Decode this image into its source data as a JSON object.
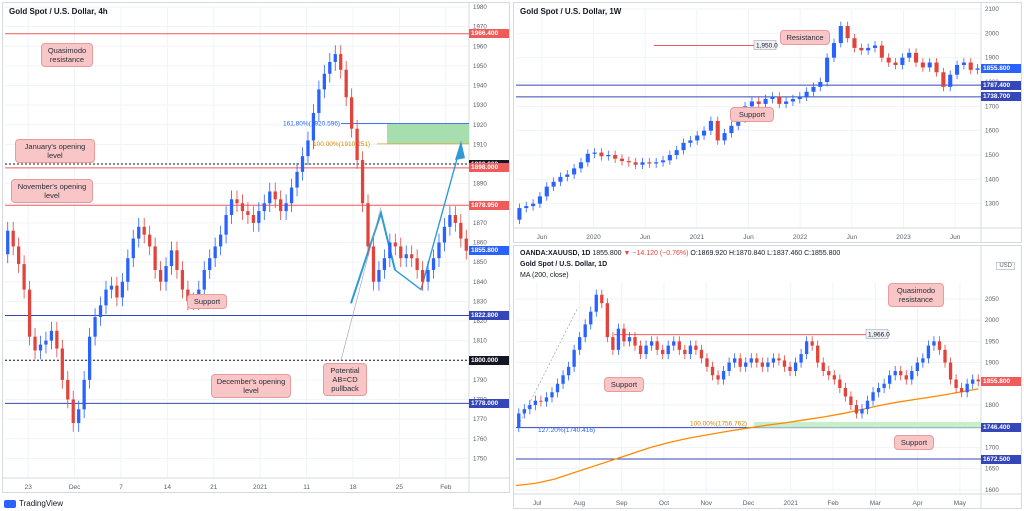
{
  "brand": "TradingView",
  "colors": {
    "up": "#2962ff",
    "down": "#e0443c",
    "res": "#ef5a5a",
    "sup": "#3446b8",
    "ma": "#ff8a00",
    "zone": "#98d8a2",
    "arrow": "#2e9bd6"
  },
  "panels": {
    "h4": {
      "title": "Gold Spot / U.S. Dollar, 4h",
      "price_tags": [
        {
          "label": "1966.400",
          "kind": "res"
        },
        {
          "label": "1900.000",
          "kind": "black"
        },
        {
          "label": "1898.000",
          "kind": "res"
        },
        {
          "label": "1878.950",
          "kind": "res"
        },
        {
          "label": "1855.800",
          "kind": "blue"
        },
        {
          "label": "1822.800",
          "kind": "sup"
        },
        {
          "label": "1800.000",
          "kind": "black"
        },
        {
          "label": "1778.000",
          "kind": "sup"
        }
      ],
      "notes": [
        {
          "text": "Quasimodo resistance"
        },
        {
          "text": "January's opening level"
        },
        {
          "text": "November's opening level"
        },
        {
          "text": "Support"
        },
        {
          "text": "Potential AB=CD pullback"
        },
        {
          "text": "December's opening level"
        }
      ],
      "fib": [
        {
          "label": "161.80%(1920.596)"
        },
        {
          "label": "100.00%(1910.251)"
        }
      ]
    },
    "w1": {
      "title": "Gold Spot / U.S. Dollar, 1W",
      "price_tags": [
        {
          "label": "1855.800",
          "kind": "blue"
        },
        {
          "label": "1787.400",
          "kind": "sup"
        },
        {
          "label": "1738.700",
          "kind": "sup"
        }
      ],
      "notes": [
        {
          "text": "Resistance"
        },
        {
          "text": "Support"
        }
      ],
      "level_label": "1,950.0"
    },
    "d1": {
      "symbol": "OANDA:XAUUSD, 1D",
      "info_price": "1855.800",
      "info_change": "▼ −14.120 (−0.76%)",
      "info_o": "O:1869.920",
      "info_h": "H:1870.840",
      "info_l": "L:1837.460",
      "info_c": "C:1855.800",
      "title": "Gold Spot / U.S. Dollar, 1D",
      "ma_label": "MA (200, close)",
      "usd": "USD",
      "price_tags": [
        {
          "label": "1855.800",
          "kind": "res"
        },
        {
          "label": "1746.400",
          "kind": "sup"
        },
        {
          "label": "1672.500",
          "kind": "sup"
        }
      ],
      "notes": [
        {
          "text": "Quasimodo resistance"
        },
        {
          "text": "Support"
        },
        {
          "text": "Support"
        }
      ],
      "level_label": "1,966.0",
      "fib": [
        {
          "label": "100.00%(1756.762)"
        },
        {
          "label": "127.20%(1740.416)"
        }
      ]
    }
  },
  "chart_data": [
    {
      "type": "candlestick",
      "title": "Gold Spot / U.S. Dollar, 4h",
      "ylim": [
        1740,
        1980
      ],
      "y_ticks": [
        1750,
        1760,
        1770,
        1780,
        1790,
        1800,
        1810,
        1820,
        1830,
        1840,
        1850,
        1860,
        1870,
        1880,
        1890,
        1900,
        1910,
        1920,
        1930,
        1940,
        1950,
        1960,
        1970,
        1980
      ],
      "x_ticks": [
        "23",
        "Dec",
        "7",
        "14",
        "21",
        "2021",
        "11",
        "18",
        "25",
        "Feb"
      ],
      "levels": [
        1966.4,
        1900.0,
        1898.0,
        1878.95,
        1822.8,
        1800.0,
        1778.0
      ],
      "close": [
        1866,
        1858,
        1849,
        1836,
        1812,
        1805,
        1808,
        1810,
        1815,
        1806,
        1790,
        1780,
        1768,
        1775,
        1790,
        1812,
        1822,
        1828,
        1836,
        1838,
        1832,
        1840,
        1852,
        1862,
        1868,
        1864,
        1858,
        1846,
        1840,
        1848,
        1856,
        1846,
        1836,
        1830,
        1830,
        1836,
        1846,
        1852,
        1858,
        1864,
        1874,
        1882,
        1880,
        1876,
        1874,
        1870,
        1876,
        1880,
        1886,
        1882,
        1876,
        1880,
        1888,
        1896,
        1904,
        1912,
        1926,
        1938,
        1946,
        1952,
        1956,
        1948,
        1934,
        1918,
        1902,
        1880,
        1858,
        1840,
        1846,
        1852,
        1860,
        1858,
        1852,
        1854,
        1852,
        1846,
        1840,
        1846,
        1852,
        1860,
        1868,
        1874,
        1870,
        1862,
        1855.8
      ]
    },
    {
      "type": "candlestick",
      "title": "Gold Spot / U.S. Dollar, 1W",
      "ylim": [
        1200,
        2100
      ],
      "y_ticks": [
        1300,
        1400,
        1500,
        1600,
        1700,
        1800,
        1900,
        2000,
        2100
      ],
      "x_ticks": [
        "Jun",
        "2020",
        "Jun",
        "2021",
        "Jun",
        "2022",
        "Jun",
        "2023",
        "Jun"
      ],
      "levels": [
        1950.0,
        1787.4,
        1738.7
      ],
      "close": [
        1282,
        1290,
        1300,
        1330,
        1370,
        1390,
        1410,
        1420,
        1445,
        1470,
        1505,
        1510,
        1495,
        1500,
        1485,
        1475,
        1470,
        1460,
        1470,
        1465,
        1470,
        1478,
        1500,
        1520,
        1550,
        1560,
        1580,
        1600,
        1640,
        1560,
        1590,
        1620,
        1650,
        1700,
        1720,
        1710,
        1730,
        1740,
        1710,
        1720,
        1730,
        1740,
        1760,
        1780,
        1800,
        1900,
        1960,
        2030,
        1980,
        1940,
        1930,
        1940,
        1950,
        1900,
        1880,
        1870,
        1900,
        1920,
        1880,
        1860,
        1880,
        1840,
        1780,
        1830,
        1870,
        1880,
        1850,
        1855.8
      ]
    },
    {
      "type": "candlestick",
      "title": "Gold Spot / U.S. Dollar, 1D",
      "ylim": [
        1590,
        2090
      ],
      "y_ticks": [
        1600,
        1650,
        1700,
        1750,
        1800,
        1850,
        1900,
        1950,
        2000,
        2050
      ],
      "x_ticks": [
        "Jul",
        "Aug",
        "Sep",
        "Oct",
        "Nov",
        "Dec",
        "2021",
        "Feb",
        "Mar",
        "Apr",
        "May"
      ],
      "levels": [
        1966.0,
        1855.8,
        1746.4,
        1672.5
      ],
      "ma_series_name": "MA (200, close)",
      "close": [
        1780,
        1790,
        1800,
        1810,
        1808,
        1818,
        1830,
        1850,
        1870,
        1890,
        1930,
        1960,
        1990,
        2020,
        2060,
        2040,
        1960,
        1930,
        1980,
        1950,
        1960,
        1940,
        1920,
        1940,
        1950,
        1930,
        1920,
        1940,
        1950,
        1930,
        1920,
        1940,
        1930,
        1910,
        1890,
        1870,
        1860,
        1880,
        1900,
        1910,
        1890,
        1900,
        1910,
        1900,
        1890,
        1900,
        1910,
        1905,
        1890,
        1880,
        1900,
        1920,
        1950,
        1940,
        1900,
        1880,
        1870,
        1860,
        1840,
        1820,
        1800,
        1780,
        1790,
        1810,
        1830,
        1840,
        1850,
        1870,
        1880,
        1870,
        1860,
        1880,
        1900,
        1910,
        1940,
        1950,
        1930,
        1900,
        1860,
        1840,
        1830,
        1850,
        1860,
        1855.8
      ],
      "ma": [
        1610,
        1615,
        1625,
        1640,
        1655,
        1670,
        1685,
        1700,
        1712,
        1722,
        1730,
        1738,
        1745,
        1752,
        1758,
        1765,
        1772,
        1780,
        1790,
        1800,
        1808,
        1815,
        1822,
        1830,
        1838
      ]
    }
  ]
}
